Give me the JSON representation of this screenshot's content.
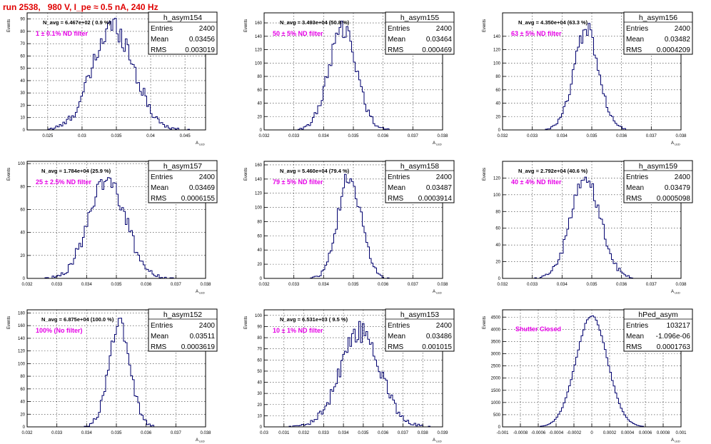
{
  "title": "run 2538,   980 V, I_pe ≈ 0.5 nA, 240 Hz",
  "colors": {
    "hist_line": "#00006e",
    "annotation": "#e600e6",
    "title": "#e00000",
    "grid": "#000000"
  },
  "stat_labels": {
    "entries": "Entries",
    "mean": "Mean",
    "rms": "RMS"
  },
  "axis_ylabel": "Events",
  "axis_xlabel": "A",
  "axis_xlabel_sub": "LED",
  "chart_data": [
    {
      "type": "bar",
      "name": "h_asym154",
      "navg": "N_avg = 6.467e+02 ( 0.9 %)",
      "filter": "1 ± 0.1% ND filter",
      "stats": {
        "entries": "2400",
        "mean": "0.03456",
        "rms": "0.003019"
      },
      "xlim": [
        0.022,
        0.048
      ],
      "ylim": [
        0,
        95
      ],
      "xticks": [
        0.025,
        0.03,
        0.035,
        0.04,
        0.045
      ],
      "xticklabels": [
        "0.025",
        "0.03",
        "0.035",
        "0.04",
        "0.045"
      ],
      "yticks": [
        0,
        10,
        20,
        30,
        40,
        50,
        60,
        70,
        80,
        90
      ],
      "yticklabels": [
        "0",
        "10",
        "20",
        "30",
        "40",
        "50",
        "60",
        "70",
        "80",
        "90"
      ],
      "gauss": {
        "mean": 0.03456,
        "sigma": 0.003019,
        "peak": 84
      }
    },
    {
      "type": "bar",
      "name": "h_asym155",
      "navg": "N_avg = 3.493e+04 (50.8 %)",
      "filter": "50 ± 5% ND filter",
      "stats": {
        "entries": "2400",
        "mean": "0.03464",
        "rms": "0.000469"
      },
      "xlim": [
        0.032,
        0.038
      ],
      "ylim": [
        0,
        175
      ],
      "xticks": [
        0.032,
        0.033,
        0.034,
        0.035,
        0.036,
        0.037,
        0.038
      ],
      "xticklabels": [
        "0.032",
        "0.033",
        "0.034",
        "0.035",
        "0.036",
        "0.037",
        "0.038"
      ],
      "yticks": [
        0,
        20,
        40,
        60,
        80,
        100,
        120,
        140,
        160
      ],
      "yticklabels": [
        "0",
        "20",
        "40",
        "60",
        "80",
        "100",
        "120",
        "140",
        "160"
      ],
      "gauss": {
        "mean": 0.03464,
        "sigma": 0.000469,
        "peak": 150
      }
    },
    {
      "type": "bar",
      "name": "h_asym156",
      "navg": "N_avg = 4.350e+04 (63.3 %)",
      "filter": "63 ± 5% ND filter",
      "stats": {
        "entries": "2400",
        "mean": "0.03482",
        "rms": "0.0004209"
      },
      "xlim": [
        0.032,
        0.038
      ],
      "ylim": [
        0,
        175
      ],
      "xticks": [
        0.032,
        0.033,
        0.034,
        0.035,
        0.036,
        0.037,
        0.038
      ],
      "xticklabels": [
        "0.032",
        "0.033",
        "0.034",
        "0.035",
        "0.036",
        "0.037",
        "0.038"
      ],
      "yticks": [
        0,
        20,
        40,
        60,
        80,
        100,
        120,
        140
      ],
      "yticklabels": [
        "0",
        "20",
        "40",
        "60",
        "80",
        "100",
        "120",
        "140"
      ],
      "gauss": {
        "mean": 0.03482,
        "sigma": 0.0004209,
        "peak": 150
      }
    },
    {
      "type": "bar",
      "name": "h_asym157",
      "navg": "N_avg = 1.784e+04 (25.9 %)",
      "filter": "25 ± 2.5% ND filter",
      "stats": {
        "entries": "2400",
        "mean": "0.03469",
        "rms": "0.0006155"
      },
      "xlim": [
        0.032,
        0.038
      ],
      "ylim": [
        0,
        102
      ],
      "xticks": [
        0.032,
        0.033,
        0.034,
        0.035,
        0.036,
        0.037,
        0.038
      ],
      "xticklabels": [
        "0.032",
        "0.033",
        "0.034",
        "0.035",
        "0.036",
        "0.037",
        "0.038"
      ],
      "yticks": [
        0,
        20,
        40,
        60,
        80,
        100
      ],
      "yticklabels": [
        "0",
        "20",
        "40",
        "60",
        "80",
        "100"
      ],
      "gauss": {
        "mean": 0.03469,
        "sigma": 0.0006155,
        "peak": 88
      }
    },
    {
      "type": "bar",
      "name": "h_asym158",
      "navg": "N_avg = 5.460e+04 (79.4 %)",
      "filter": "79 ± 5% ND filter",
      "stats": {
        "entries": "2400",
        "mean": "0.03487",
        "rms": "0.0003914"
      },
      "xlim": [
        0.032,
        0.038
      ],
      "ylim": [
        0,
        165
      ],
      "xticks": [
        0.032,
        0.033,
        0.034,
        0.035,
        0.036,
        0.037,
        0.038
      ],
      "xticklabels": [
        "0.032",
        "0.033",
        "0.034",
        "0.035",
        "0.036",
        "0.037",
        "0.038"
      ],
      "yticks": [
        0,
        20,
        40,
        60,
        80,
        100,
        120,
        140,
        160
      ],
      "yticklabels": [
        "0",
        "20",
        "40",
        "60",
        "80",
        "100",
        "120",
        "140",
        "160"
      ],
      "gauss": {
        "mean": 0.03487,
        "sigma": 0.0003914,
        "peak": 145
      }
    },
    {
      "type": "bar",
      "name": "h_asym159",
      "navg": "N_avg = 2.792e+04 (40.6 %)",
      "filter": "40 ± 4% ND filter",
      "stats": {
        "entries": "2400",
        "mean": "0.03479",
        "rms": "0.0005098"
      },
      "xlim": [
        0.032,
        0.038
      ],
      "ylim": [
        0,
        140
      ],
      "xticks": [
        0.032,
        0.033,
        0.034,
        0.035,
        0.036,
        0.037,
        0.038
      ],
      "xticklabels": [
        "0.032",
        "0.033",
        "0.034",
        "0.035",
        "0.036",
        "0.037",
        "0.038"
      ],
      "yticks": [
        0,
        20,
        40,
        60,
        80,
        100,
        120
      ],
      "yticklabels": [
        "0",
        "20",
        "40",
        "60",
        "80",
        "100",
        "120"
      ],
      "gauss": {
        "mean": 0.03479,
        "sigma": 0.0005098,
        "peak": 115
      }
    },
    {
      "type": "bar",
      "name": "h_asym152",
      "navg": "N_avg = 6.875e+04 (100.0 %)",
      "filter": "100% (No filter)",
      "stats": {
        "entries": "2400",
        "mean": "0.03511",
        "rms": "0.0003619"
      },
      "xlim": [
        0.032,
        0.038
      ],
      "ylim": [
        0,
        185
      ],
      "xticks": [
        0.032,
        0.033,
        0.034,
        0.035,
        0.036,
        0.037,
        0.038
      ],
      "xticklabels": [
        "0.032",
        "0.033",
        "0.034",
        "0.035",
        "0.036",
        "0.037",
        "0.038"
      ],
      "yticks": [
        0,
        20,
        40,
        60,
        80,
        100,
        120,
        140,
        160,
        180
      ],
      "yticklabels": [
        "0",
        "20",
        "40",
        "60",
        "80",
        "100",
        "120",
        "140",
        "160",
        "180"
      ],
      "gauss": {
        "mean": 0.03511,
        "sigma": 0.0003619,
        "peak": 160
      }
    },
    {
      "type": "bar",
      "name": "h_asym153",
      "navg": "N_avg = 6.531e+03 ( 9.5 %)",
      "filter": "10 ± 1% ND filter",
      "stats": {
        "entries": "2400",
        "mean": "0.03486",
        "rms": "0.001015"
      },
      "xlim": [
        0.03,
        0.039
      ],
      "ylim": [
        0,
        105
      ],
      "xticks": [
        0.03,
        0.031,
        0.032,
        0.033,
        0.034,
        0.035,
        0.036,
        0.037,
        0.038,
        0.039
      ],
      "xticklabels": [
        "0.03",
        "0.031",
        "0.032",
        "0.033",
        "0.034",
        "0.035",
        "0.036",
        "0.037",
        "0.038",
        "0.039"
      ],
      "yticks": [
        0,
        10,
        20,
        30,
        40,
        50,
        60,
        70,
        80,
        90,
        100
      ],
      "yticklabels": [
        "0",
        "10",
        "20",
        "30",
        "40",
        "50",
        "60",
        "70",
        "80",
        "90",
        "100"
      ],
      "gauss": {
        "mean": 0.03486,
        "sigma": 0.001015,
        "peak": 85
      }
    },
    {
      "type": "bar",
      "name": "hPed_asym",
      "navg": "",
      "filter": "Shutter Closed",
      "stats": {
        "entries": "103217",
        "mean": "-1.096e-06",
        "rms": "0.0001763"
      },
      "xlim": [
        -0.001,
        0.001
      ],
      "ylim": [
        0,
        4800
      ],
      "xticks": [
        -0.001,
        -0.0008,
        -0.0006,
        -0.0004,
        -0.0002,
        0,
        0.0002,
        0.0004,
        0.0006,
        0.0008,
        0.001
      ],
      "xticklabels": [
        "-0.001",
        "-0.0008",
        "-0.0006",
        "-0.0004",
        "-0.0002",
        "0",
        "0.0002",
        "0.0004",
        "0.0006",
        "0.0008",
        "0.001"
      ],
      "yticks": [
        0,
        500,
        1000,
        1500,
        2000,
        2500,
        3000,
        3500,
        4000,
        4500
      ],
      "yticklabels": [
        "0",
        "500",
        "1000",
        "1500",
        "2000",
        "2500",
        "3000",
        "3500",
        "4000",
        "4500"
      ],
      "gauss": {
        "mean": -1.096e-06,
        "sigma": 0.0001763,
        "peak": 4550
      }
    }
  ]
}
